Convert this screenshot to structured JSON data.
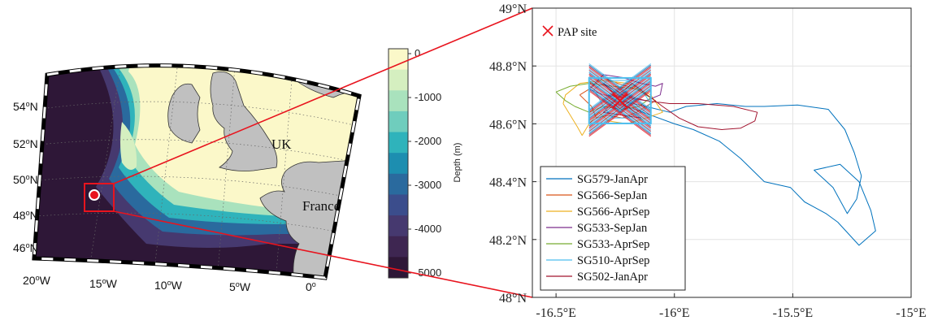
{
  "map": {
    "country_labels": [
      "UK",
      "France"
    ],
    "lat_labels": [
      {
        "deg": "54",
        "hemi": "N"
      },
      {
        "deg": "52",
        "hemi": "N"
      },
      {
        "deg": "50",
        "hemi": "N"
      },
      {
        "deg": "48",
        "hemi": "N"
      },
      {
        "deg": "46",
        "hemi": "N"
      }
    ],
    "lon_labels": [
      {
        "deg": "20",
        "hemi": "W"
      },
      {
        "deg": "15",
        "hemi": "W"
      },
      {
        "deg": "10",
        "hemi": "W"
      },
      {
        "deg": "5",
        "hemi": "W"
      },
      {
        "deg": "0",
        "hemi": ""
      }
    ],
    "colorbar": {
      "label": "Depth (m)",
      "ticks": [
        "0",
        "-1000",
        "-2000",
        "-3000",
        "-4000",
        "-5000"
      ],
      "colors": [
        "#fbf8c9",
        "#d5efc0",
        "#a9e2bd",
        "#6fcdbd",
        "#2fb3bb",
        "#1d8eb0",
        "#2a6a9e",
        "#3b4d8c",
        "#46396f",
        "#3e2651",
        "#2e1737"
      ]
    },
    "colors": {
      "land": "#c0c0c0",
      "shelf": "#fbf8c9",
      "deep": "#2e1737",
      "highlight": "#e8141e"
    }
  },
  "chart_data": {
    "type": "line",
    "xlabel": "",
    "ylabel": "",
    "xlim": [
      -16.6,
      -15.0
    ],
    "ylim": [
      48.0,
      49.0
    ],
    "x_ticks": [
      "-16.5°E",
      "-16°E",
      "-15.5°E",
      "-15°E"
    ],
    "y_ticks": [
      "48°N",
      "48.2°N",
      "48.4°N",
      "48.6°N",
      "48.8°N",
      "49°N"
    ],
    "grid": true,
    "legend_position": "lower-left",
    "site": {
      "name": "PAP site",
      "lon": -16.23,
      "lat": 48.68,
      "color": "#e8141e"
    },
    "series": [
      {
        "name": "SG579-JanApr",
        "color": "#0072bd",
        "points": [
          [
            -16.23,
            48.68
          ],
          [
            -16.12,
            48.66
          ],
          [
            -16.02,
            48.64
          ],
          [
            -15.95,
            48.66
          ],
          [
            -15.82,
            48.67
          ],
          [
            -15.7,
            48.66
          ],
          [
            -15.62,
            48.66
          ],
          [
            -15.48,
            48.665
          ],
          [
            -15.35,
            48.65
          ],
          [
            -15.28,
            48.58
          ],
          [
            -15.24,
            48.5
          ],
          [
            -15.21,
            48.42
          ],
          [
            -15.23,
            48.34
          ],
          [
            -15.27,
            48.29
          ],
          [
            -15.33,
            48.38
          ],
          [
            -15.41,
            48.44
          ],
          [
            -15.3,
            48.46
          ],
          [
            -15.22,
            48.4
          ],
          [
            -15.17,
            48.3
          ],
          [
            -15.15,
            48.23
          ],
          [
            -15.22,
            48.18
          ],
          [
            -15.31,
            48.26
          ],
          [
            -15.36,
            48.29
          ],
          [
            -15.45,
            48.33
          ],
          [
            -15.51,
            48.38
          ],
          [
            -15.62,
            48.4
          ],
          [
            -15.72,
            48.48
          ],
          [
            -15.81,
            48.54
          ],
          [
            -15.92,
            48.58
          ],
          [
            -16.0,
            48.6
          ],
          [
            -16.1,
            48.63
          ],
          [
            -16.2,
            48.66
          ]
        ]
      },
      {
        "name": "SG566-SepJan",
        "color": "#d95319",
        "points": [
          [
            -16.4,
            48.7
          ],
          [
            -16.35,
            48.66
          ],
          [
            -16.33,
            48.62
          ],
          [
            -16.28,
            48.63
          ],
          [
            -16.22,
            48.62
          ],
          [
            -16.16,
            48.64
          ],
          [
            -16.12,
            48.66
          ],
          [
            -16.08,
            48.68
          ],
          [
            -16.16,
            48.72
          ],
          [
            -16.24,
            48.74
          ],
          [
            -16.3,
            48.76
          ],
          [
            -16.36,
            48.72
          ],
          [
            -16.4,
            48.7
          ]
        ]
      },
      {
        "name": "SG566-AprSep",
        "color": "#edb120",
        "points": [
          [
            -16.47,
            48.67
          ],
          [
            -16.44,
            48.63
          ],
          [
            -16.41,
            48.59
          ],
          [
            -16.39,
            48.56
          ],
          [
            -16.36,
            48.6
          ],
          [
            -16.32,
            48.64
          ],
          [
            -16.28,
            48.61
          ],
          [
            -16.2,
            48.6
          ],
          [
            -16.12,
            48.62
          ],
          [
            -16.05,
            48.64
          ],
          [
            -16.1,
            48.7
          ],
          [
            -16.2,
            48.74
          ],
          [
            -16.3,
            48.75
          ],
          [
            -16.4,
            48.74
          ],
          [
            -16.46,
            48.7
          ],
          [
            -16.47,
            48.67
          ]
        ]
      },
      {
        "name": "SG533-SepJan",
        "color": "#7e2f8e",
        "points": [
          [
            -16.36,
            48.72
          ],
          [
            -16.3,
            48.77
          ],
          [
            -16.22,
            48.76
          ],
          [
            -16.14,
            48.74
          ],
          [
            -16.08,
            48.73
          ],
          [
            -16.05,
            48.74
          ],
          [
            -16.06,
            48.7
          ],
          [
            -16.12,
            48.68
          ],
          [
            -16.2,
            48.69
          ],
          [
            -16.3,
            48.7
          ],
          [
            -16.36,
            48.72
          ]
        ]
      },
      {
        "name": "SG533-AprSep",
        "color": "#77ac30",
        "points": [
          [
            -16.5,
            48.71
          ],
          [
            -16.46,
            48.68
          ],
          [
            -16.42,
            48.66
          ],
          [
            -16.36,
            48.64
          ],
          [
            -16.3,
            48.66
          ],
          [
            -16.22,
            48.65
          ],
          [
            -16.15,
            48.66
          ],
          [
            -16.1,
            48.69
          ],
          [
            -16.16,
            48.72
          ],
          [
            -16.26,
            48.73
          ],
          [
            -16.36,
            48.74
          ],
          [
            -16.44,
            48.73
          ],
          [
            -16.5,
            48.71
          ]
        ]
      },
      {
        "name": "SG510-AprSep",
        "color": "#4dbeee",
        "points": [
          [
            -16.34,
            48.72
          ],
          [
            -16.3,
            48.66
          ],
          [
            -16.26,
            48.62
          ],
          [
            -16.2,
            48.62
          ],
          [
            -16.14,
            48.64
          ],
          [
            -16.1,
            48.67
          ],
          [
            -16.14,
            48.72
          ],
          [
            -16.2,
            48.75
          ],
          [
            -16.28,
            48.75
          ],
          [
            -16.34,
            48.72
          ]
        ]
      },
      {
        "name": "SG502-JanApr",
        "color": "#a2142f",
        "points": [
          [
            -16.3,
            48.74
          ],
          [
            -16.2,
            48.66
          ],
          [
            -16.14,
            48.62
          ],
          [
            -16.3,
            48.64
          ],
          [
            -16.18,
            48.74
          ],
          [
            -16.05,
            48.66
          ],
          [
            -15.98,
            48.62
          ],
          [
            -15.9,
            48.59
          ],
          [
            -15.8,
            48.58
          ],
          [
            -15.72,
            48.585
          ],
          [
            -15.66,
            48.61
          ],
          [
            -15.65,
            48.64
          ],
          [
            -15.75,
            48.66
          ],
          [
            -15.9,
            48.67
          ],
          [
            -16.02,
            48.67
          ],
          [
            -16.12,
            48.68
          ],
          [
            -16.22,
            48.7
          ],
          [
            -16.3,
            48.74
          ]
        ]
      }
    ]
  }
}
